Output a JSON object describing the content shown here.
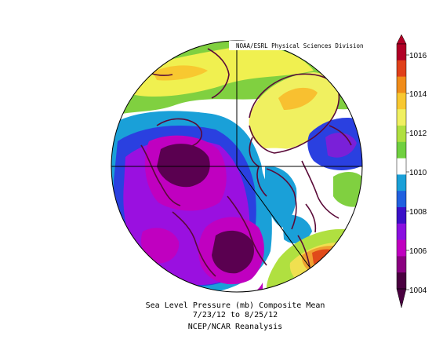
{
  "attribution": "NOAA/ESRL Physical Sciences Division",
  "caption": {
    "line1": "Sea Level Pressure (mb) Composite Mean",
    "line2": "7/23/12  to 8/25/12",
    "line3": "NCEP/NCAR Reanalysis"
  },
  "colorbar": {
    "ticks": [
      "1016",
      "1014",
      "1012",
      "1010",
      "1008",
      "1006",
      "1004"
    ],
    "colors": [
      "#b10026",
      "#e0401a",
      "#f08c1a",
      "#f8c830",
      "#f0f060",
      "#b0e040",
      "#70d040",
      "#ffffff",
      "#1aa0d8",
      "#2060e0",
      "#3a10c8",
      "#8a10e0",
      "#c000c0",
      "#8a0080",
      "#4a0040"
    ]
  },
  "colors": {
    "land_outline": "#5a0a38",
    "grid_line": "#000000"
  }
}
